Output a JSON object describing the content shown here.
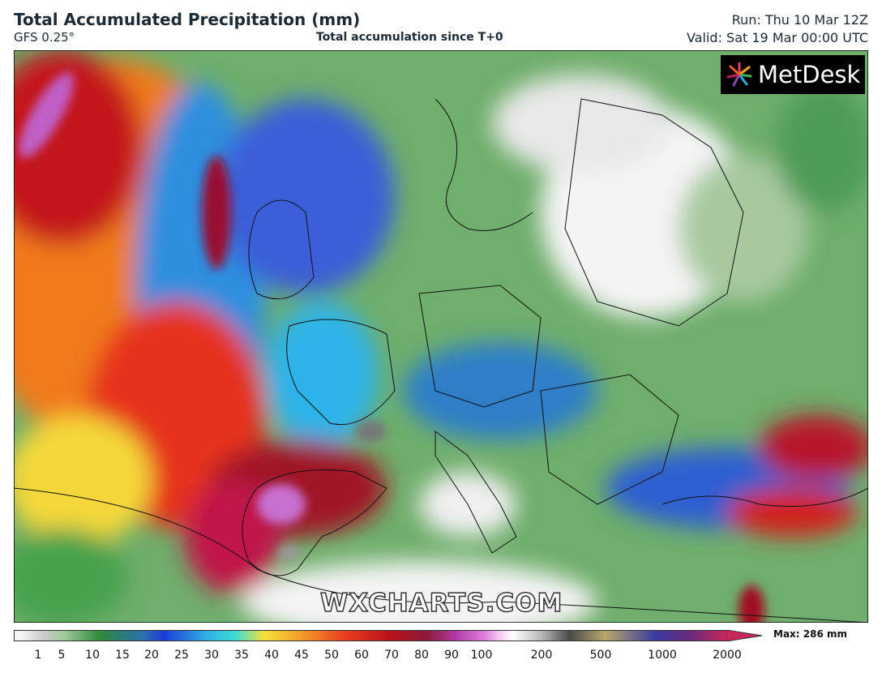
{
  "header": {
    "title": "Total Accumulated Precipitation (mm)",
    "model": "GFS 0.25°",
    "subtitle": "Total accumulation since T+0",
    "run": "Run: Thu 10 Mar 12Z",
    "valid": "Valid: Sat 19 Mar 00:00 UTC"
  },
  "logo": "MetDesk",
  "watermark": "WXCHARTS.COM",
  "colorbar": {
    "labels": [
      1,
      5,
      10,
      15,
      20,
      25,
      30,
      35,
      40,
      45,
      50,
      60,
      70,
      80,
      90,
      100,
      200,
      500,
      1000,
      2000
    ],
    "max_label": "Max: 286 mm"
  }
}
